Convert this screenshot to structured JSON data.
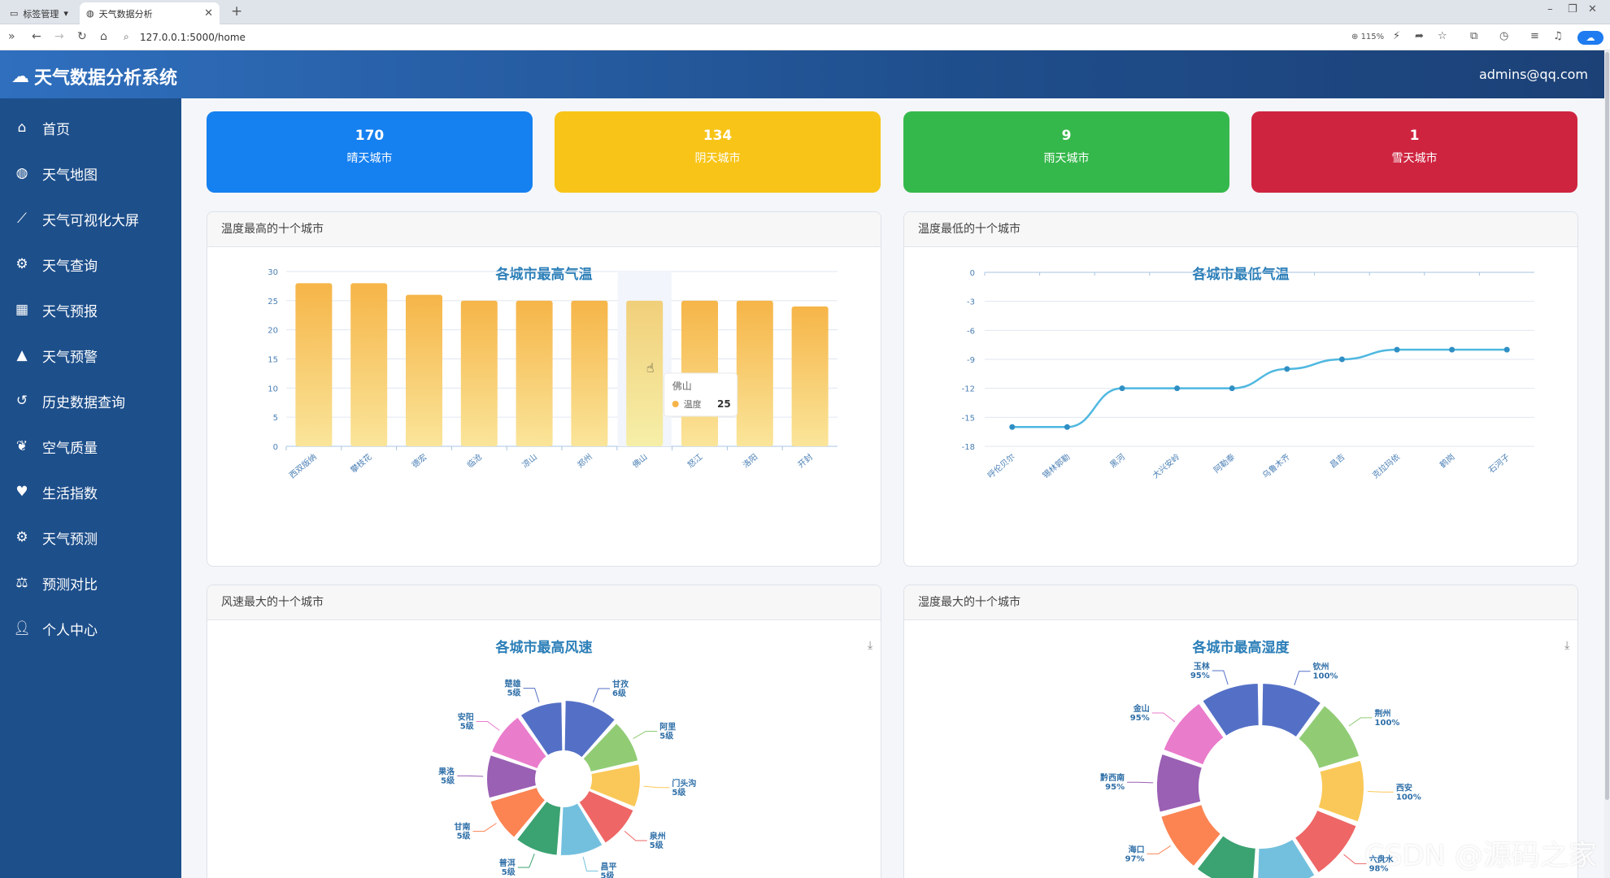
{
  "browser": {
    "tabs": [
      {
        "label": "标签管理"
      },
      {
        "label": "天气数据分析"
      }
    ],
    "url": "127.0.0.1:5000/home",
    "zoom": "115%"
  },
  "app": {
    "title": "天气数据分析系统",
    "user": "admins@qq.com"
  },
  "sidebar": {
    "items": [
      {
        "label": "首页",
        "icon": "home-icon"
      },
      {
        "label": "天气地图",
        "icon": "globe-icon"
      },
      {
        "label": "天气可视化大屏",
        "icon": "line-chart-icon"
      },
      {
        "label": "天气查询",
        "icon": "gear-icon"
      },
      {
        "label": "天气预报",
        "icon": "calendar-icon"
      },
      {
        "label": "天气预警",
        "icon": "warning-icon"
      },
      {
        "label": "历史数据查询",
        "icon": "history-icon"
      },
      {
        "label": "空气质量",
        "icon": "leaf-icon"
      },
      {
        "label": "生活指数",
        "icon": "heart-icon"
      },
      {
        "label": "天气预测",
        "icon": "gears-icon"
      },
      {
        "label": "预测对比",
        "icon": "balance-icon"
      },
      {
        "label": "个人中心",
        "icon": "user-icon"
      }
    ]
  },
  "stats": [
    {
      "value": "170",
      "label": "晴天城市",
      "color": "#1580f0"
    },
    {
      "value": "134",
      "label": "阴天城市",
      "color": "#f8c417"
    },
    {
      "value": "9",
      "label": "雨天城市",
      "color": "#35b84b"
    },
    {
      "value": "1",
      "label": "雪天城市",
      "color": "#cf2440"
    }
  ],
  "panels": {
    "high_temp": {
      "header": "温度最高的十个城市"
    },
    "low_temp": {
      "header": "温度最低的十个城市"
    },
    "wind": {
      "header": "风速最大的十个城市"
    },
    "humidity": {
      "header": "湿度最大的十个城市"
    }
  },
  "chart_data": [
    {
      "type": "bar",
      "title": "各城市最高气温",
      "categories": [
        "西双版纳",
        "攀枝花",
        "德宏",
        "临沧",
        "凉山",
        "郑州",
        "佛山",
        "怒江",
        "洛阳",
        "开封"
      ],
      "values": [
        28,
        28,
        26,
        25,
        25,
        25,
        25,
        25,
        25,
        24
      ],
      "ylim": [
        0,
        30
      ],
      "yticks": [
        0,
        5,
        10,
        15,
        20,
        25,
        30
      ],
      "tooltip": {
        "category": "佛山",
        "series": "温度",
        "value": "25"
      },
      "color": "#f6b548"
    },
    {
      "type": "line",
      "title": "各城市最低气温",
      "categories": [
        "呼伦贝尔",
        "锡林郭勒",
        "黑河",
        "大兴安岭",
        "阿勒泰",
        "乌鲁木齐",
        "昌吉",
        "克拉玛依",
        "鹤岗",
        "石河子"
      ],
      "values": [
        -16,
        -16,
        -12,
        -12,
        -12,
        -10,
        -9,
        -8,
        -8,
        -8
      ],
      "ylim": [
        -18,
        0
      ],
      "yticks": [
        0,
        -3,
        -6,
        -9,
        -12,
        -15,
        -18
      ],
      "color": "#4fb8e0"
    },
    {
      "type": "pie",
      "title": "各城市最高风速",
      "slices": [
        {
          "name": "甘孜",
          "label": "6级",
          "value": 6,
          "color": "#5470c6"
        },
        {
          "name": "阿里",
          "label": "5级",
          "value": 5,
          "color": "#91cc75"
        },
        {
          "name": "门头沟",
          "label": "5级",
          "value": 5,
          "color": "#fac858"
        },
        {
          "name": "泉州",
          "label": "5级",
          "value": 5,
          "color": "#ee6666"
        },
        {
          "name": "昌平",
          "label": "5级",
          "value": 5,
          "color": "#73c0de"
        },
        {
          "name": "普洱",
          "label": "5级",
          "value": 5,
          "color": "#3ba272"
        },
        {
          "name": "甘南",
          "label": "5级",
          "value": 5,
          "color": "#fc8452"
        },
        {
          "name": "果洛",
          "label": "5级",
          "value": 5,
          "color": "#9a60b4"
        },
        {
          "name": "安阳",
          "label": "5级",
          "value": 5,
          "color": "#ea7ccc"
        },
        {
          "name": "楚雄",
          "label": "5级",
          "value": 5,
          "color": "#5470c6"
        }
      ]
    },
    {
      "type": "pie",
      "title": "各城市最高湿度",
      "slices": [
        {
          "name": "钦州",
          "label": "100%",
          "value": 100,
          "color": "#5470c6"
        },
        {
          "name": "荆州",
          "label": "100%",
          "value": 100,
          "color": "#91cc75"
        },
        {
          "name": "西安",
          "label": "100%",
          "value": 100,
          "color": "#fac858"
        },
        {
          "name": "六盘水",
          "label": "98%",
          "value": 98,
          "color": "#ee6666"
        },
        {
          "name": "",
          "label": "",
          "value": 97,
          "color": "#73c0de"
        },
        {
          "name": "",
          "label": "",
          "value": 97,
          "color": "#3ba272"
        },
        {
          "name": "海口",
          "label": "97%",
          "value": 97,
          "color": "#fc8452"
        },
        {
          "name": "黔西南",
          "label": "95%",
          "value": 95,
          "color": "#9a60b4"
        },
        {
          "name": "金山",
          "label": "95%",
          "value": 95,
          "color": "#ea7ccc"
        },
        {
          "name": "玉林",
          "label": "95%",
          "value": 95,
          "color": "#5470c6"
        }
      ]
    }
  ],
  "watermark": "CSDN @源码之家"
}
